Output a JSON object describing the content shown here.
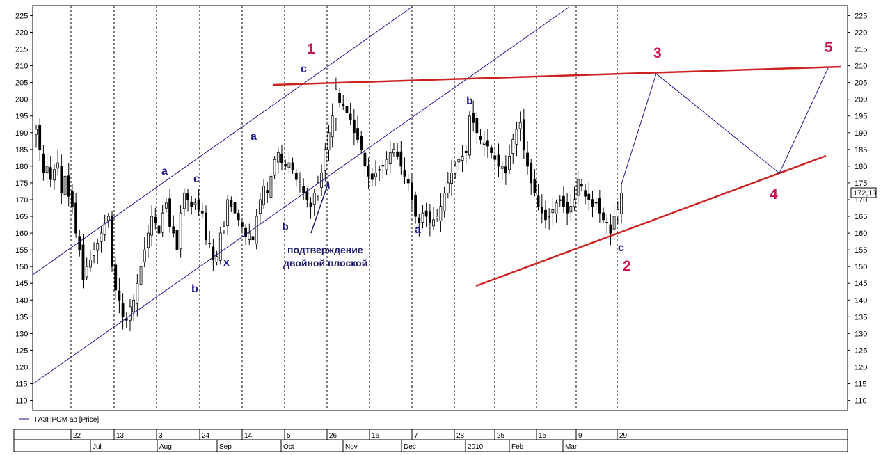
{
  "chart_data": {
    "type": "candlestick",
    "legend": "ГАЗПРОМ ао [Price]",
    "last_price": "172,19",
    "ylim": [
      107,
      228
    ],
    "yticks": [
      110,
      115,
      120,
      125,
      130,
      135,
      140,
      145,
      150,
      155,
      160,
      165,
      170,
      175,
      180,
      185,
      190,
      195,
      200,
      205,
      210,
      215,
      220,
      225
    ],
    "date_ticks": [
      "22",
      "13",
      "3",
      "24",
      "14",
      "5",
      "26",
      "16",
      "7",
      "28",
      "25",
      "15",
      "9",
      "29"
    ],
    "month_ticks": [
      "Jul",
      "Aug",
      "Sep",
      "Oct",
      "Nov",
      "Dec",
      "2010",
      "Feb",
      "Mar"
    ],
    "series": [
      {
        "values": [
          191,
          185,
          178,
          180,
          176,
          179,
          181,
          172,
          177,
          171,
          168,
          160,
          155,
          146,
          150,
          152,
          155,
          157,
          160,
          163,
          165,
          150,
          143,
          140,
          135,
          134,
          138,
          140,
          145,
          150,
          155,
          160,
          165,
          163,
          160,
          166,
          169,
          162,
          160,
          155,
          166,
          172,
          170,
          168,
          169,
          167,
          166,
          158,
          157,
          152,
          153,
          160,
          162,
          170,
          168,
          166,
          164,
          162,
          159,
          160,
          158,
          165,
          170,
          174,
          172,
          177,
          182,
          184,
          181,
          180,
          181,
          179,
          176,
          175,
          172,
          170,
          168,
          172,
          175,
          178,
          185,
          190,
          195,
          203,
          199,
          198,
          196,
          194,
          190,
          188,
          185,
          180,
          177,
          176,
          178,
          179,
          180,
          182,
          184,
          185,
          183,
          180,
          177,
          175,
          170,
          165,
          163,
          166,
          165,
          163,
          164,
          165,
          168,
          172,
          175,
          178,
          180,
          182,
          183,
          184,
          195,
          193,
          190,
          188,
          187,
          186,
          184,
          182,
          180,
          180,
          178,
          183,
          188,
          191,
          193,
          185,
          180,
          175,
          172,
          168,
          166,
          164,
          165,
          167,
          169,
          170,
          168,
          166,
          168,
          170,
          176,
          174,
          171,
          170,
          168,
          169,
          166,
          164,
          163,
          160,
          165,
          167,
          172
        ]
      }
    ],
    "wave_labels": [
      {
        "text": "1",
        "color": "#cc1155",
        "size": "big"
      },
      {
        "text": "2",
        "color": "#cc1155",
        "size": "big"
      },
      {
        "text": "3",
        "color": "#cc1155",
        "size": "big"
      },
      {
        "text": "4",
        "color": "#cc1155",
        "size": "big"
      },
      {
        "text": "5",
        "color": "#cc1155",
        "size": "big"
      },
      {
        "text": "a",
        "color": "#1a1a8e",
        "size": "small"
      },
      {
        "text": "c",
        "color": "#1a1a8e",
        "size": "small"
      },
      {
        "text": "b",
        "color": "#1a1a8e",
        "size": "small"
      },
      {
        "text": "x",
        "color": "#1a1a8e",
        "size": "small"
      },
      {
        "text": "a",
        "color": "#1a1a8e",
        "size": "small"
      },
      {
        "text": "b",
        "color": "#1a1a8e",
        "size": "small"
      },
      {
        "text": "c",
        "color": "#1a1a8e",
        "size": "small"
      },
      {
        "text": "a",
        "color": "#1a1a8e",
        "size": "small"
      },
      {
        "text": "b",
        "color": "#1a1a8e",
        "size": "small"
      },
      {
        "text": "c",
        "color": "#1a1a8e",
        "size": "small"
      }
    ],
    "annotation": [
      "подтверждение",
      "двойной плоской"
    ],
    "colors": {
      "candle": "#000000",
      "channel": "#1a1a8e",
      "trendline": "#cc2222",
      "grid": "#000000"
    }
  }
}
